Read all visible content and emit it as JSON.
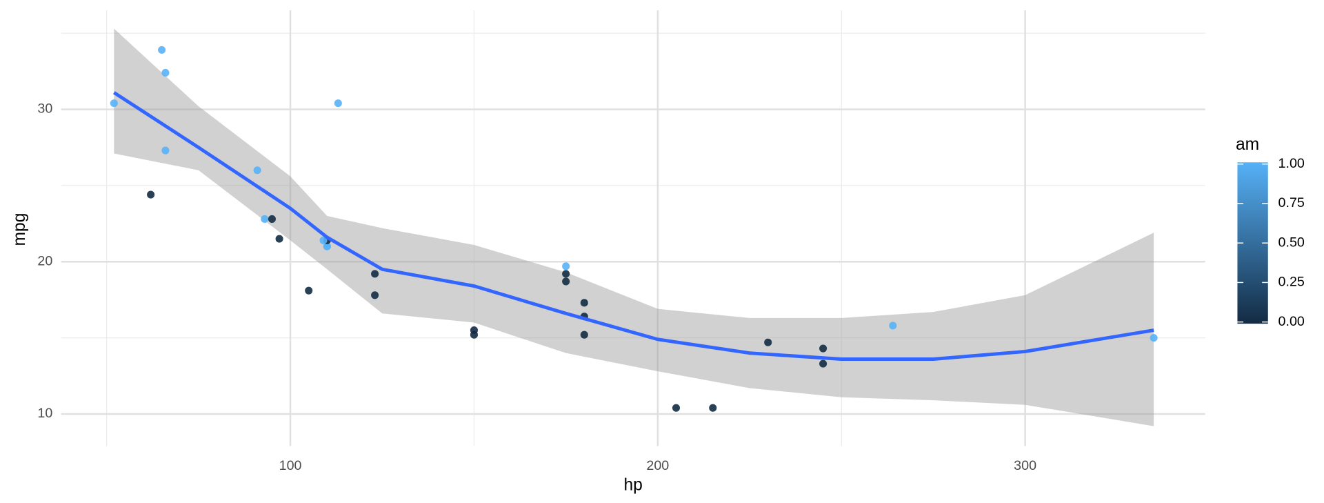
{
  "chart_data": {
    "type": "scatter",
    "x_label": "hp",
    "y_label": "mpg",
    "x": [
      110,
      110,
      93,
      110,
      175,
      105,
      245,
      62,
      95,
      123,
      123,
      180,
      180,
      180,
      205,
      215,
      230,
      66,
      52,
      65,
      97,
      150,
      150,
      245,
      175,
      66,
      91,
      113,
      264,
      175,
      335,
      109
    ],
    "y": [
      21.0,
      21.0,
      22.8,
      21.4,
      18.7,
      18.1,
      14.3,
      24.4,
      22.8,
      19.2,
      17.8,
      16.4,
      17.3,
      15.2,
      10.4,
      10.4,
      14.7,
      32.4,
      30.4,
      33.9,
      21.5,
      15.5,
      15.2,
      13.3,
      19.2,
      27.3,
      26.0,
      30.4,
      15.8,
      19.7,
      15.0,
      21.4
    ],
    "am": [
      1,
      1,
      1,
      0,
      0,
      0,
      0,
      0,
      0,
      0,
      0,
      0,
      0,
      0,
      0,
      0,
      0,
      1,
      1,
      1,
      0,
      0,
      0,
      0,
      0,
      1,
      1,
      1,
      1,
      1,
      1,
      1
    ],
    "smooth": {
      "color": "#3366FF",
      "band_color": "#999999",
      "x": [
        52,
        75,
        100,
        110,
        125,
        150,
        175,
        200,
        225,
        250,
        275,
        300,
        335
      ],
      "y": [
        31.1,
        27.5,
        23.5,
        21.6,
        19.5,
        18.4,
        16.6,
        14.9,
        14.0,
        13.6,
        13.6,
        14.1,
        15.5
      ],
      "ymin": [
        27.1,
        26.0,
        21.4,
        19.5,
        16.6,
        16.0,
        14.0,
        12.8,
        11.7,
        11.1,
        10.9,
        10.6,
        9.2
      ],
      "ymax": [
        35.3,
        30.2,
        25.6,
        23.0,
        22.2,
        21.1,
        19.3,
        16.9,
        16.3,
        16.3,
        16.7,
        17.8,
        21.9
      ]
    },
    "xlim": [
      37.6,
      349
    ],
    "ylim": [
      7.9,
      36.5
    ],
    "xticks": [
      100,
      200,
      300
    ],
    "yticks": [
      10,
      20,
      30
    ],
    "minor_xticks": [
      50,
      150,
      250
    ],
    "minor_yticks": [
      15,
      25,
      35
    ],
    "grid": true,
    "legend": {
      "title": "am",
      "position": "right",
      "low": "#132B43",
      "high": "#56B1F7",
      "limits": [
        0,
        1
      ],
      "ticks": [
        {
          "value": 0,
          "label": "0.00"
        },
        {
          "value": 0.25,
          "label": "0.25"
        },
        {
          "value": 0.5,
          "label": "0.50"
        },
        {
          "value": 0.75,
          "label": "0.75"
        },
        {
          "value": 1,
          "label": "1.00"
        }
      ]
    }
  }
}
